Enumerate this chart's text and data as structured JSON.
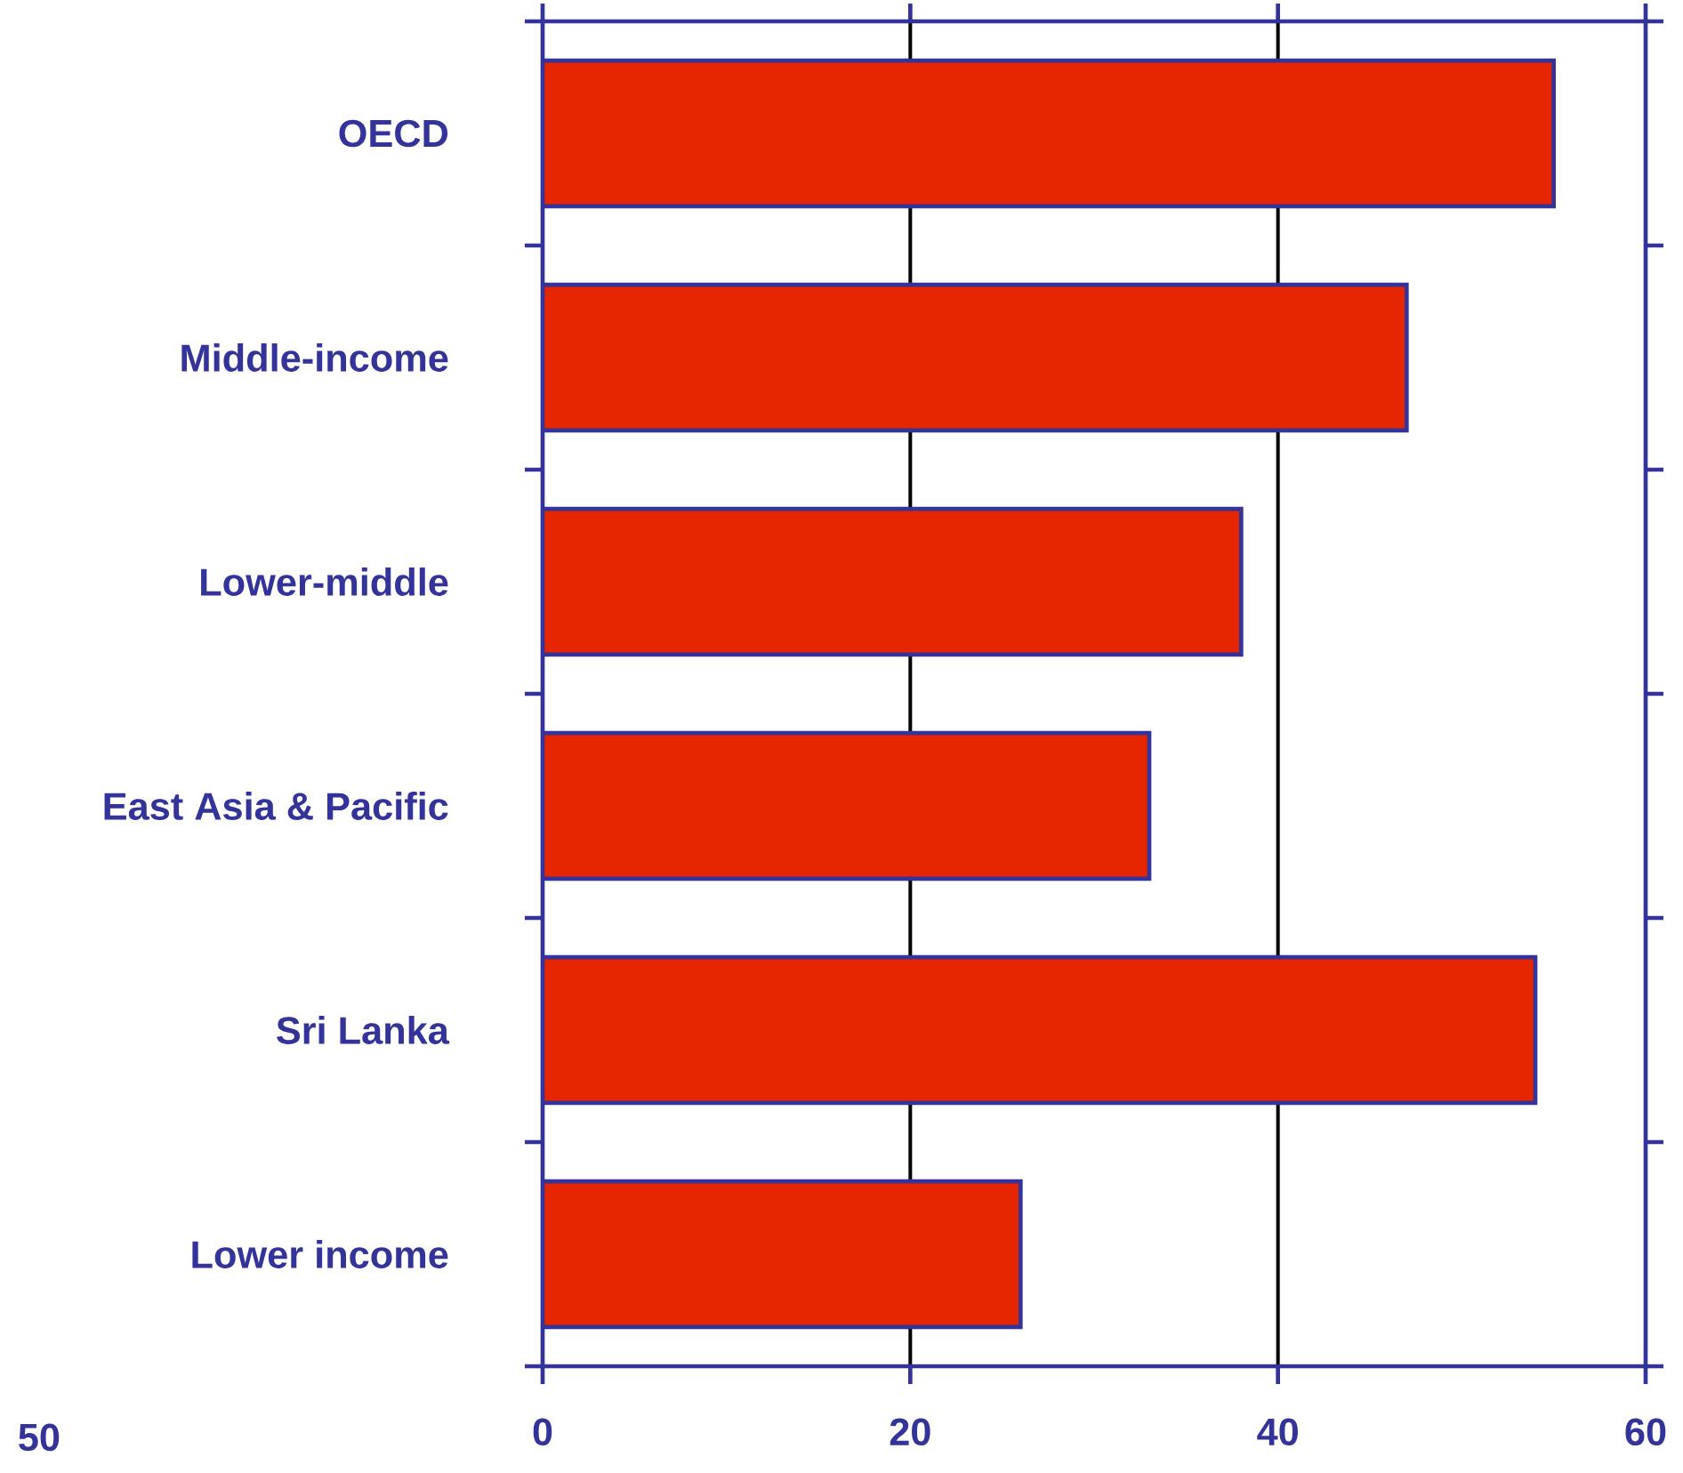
{
  "chart_data": {
    "type": "bar",
    "orientation": "horizontal",
    "categories": [
      "OECD",
      "Middle-income",
      "Lower-middle",
      "East Asia & Pacific",
      "Sri Lanka",
      "Lower income"
    ],
    "values": [
      55,
      47,
      38,
      33,
      54,
      26
    ],
    "color": "#e62600",
    "xlim": [
      0,
      60
    ],
    "xticks": [
      0,
      20,
      40,
      60
    ],
    "grid": "x",
    "annotations": [
      "50"
    ]
  }
}
